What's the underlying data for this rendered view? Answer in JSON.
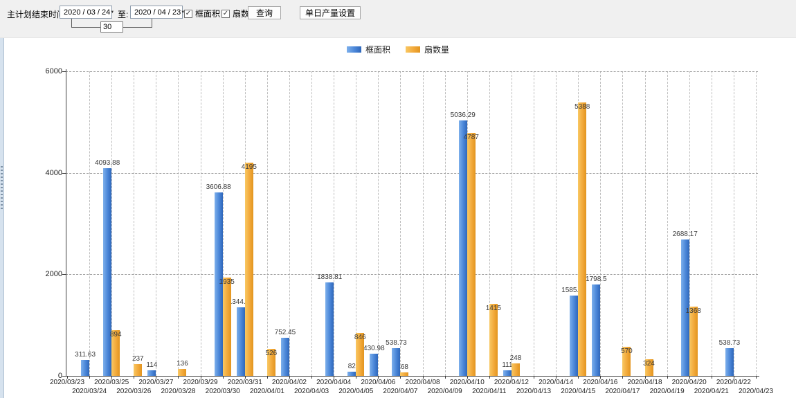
{
  "toolbar": {
    "end_time_label": "主计划结束时间:",
    "start_date": {
      "value": "2020 / 03 / 24"
    },
    "to_label": "至:",
    "end_date": {
      "value": "2020 / 04 / 23"
    },
    "interval_days": "30",
    "checkboxes": [
      {
        "label": "框面积",
        "checked": true
      },
      {
        "label": "扇数量",
        "checked": true
      }
    ],
    "query_button": "查询",
    "daily_output_button": "单日产量设置",
    "dropdown_arrow_glyph": "▼",
    "check_glyph": "✓"
  },
  "chart_data": {
    "type": "bar",
    "title": "",
    "xlabel": "",
    "ylabel": "",
    "ylim": [
      0,
      6000
    ],
    "yticks": [
      0,
      2000,
      4000,
      6000
    ],
    "grid": true,
    "legend_position": "top",
    "categories": [
      "2020/03/23",
      "2020/03/24",
      "2020/03/25",
      "2020/03/26",
      "2020/03/27",
      "2020/03/28",
      "2020/03/29",
      "2020/03/30",
      "2020/03/31",
      "2020/04/01",
      "2020/04/02",
      "2020/04/03",
      "2020/04/04",
      "2020/04/05",
      "2020/04/06",
      "2020/04/07",
      "2020/04/08",
      "2020/04/09",
      "2020/04/10",
      "2020/04/11",
      "2020/04/12",
      "2020/04/13",
      "2020/04/14",
      "2020/04/15",
      "2020/04/16",
      "2020/04/17",
      "2020/04/18",
      "2020/04/19",
      "2020/04/20",
      "2020/04/21",
      "2020/04/22",
      "2020/04/23"
    ],
    "series": [
      {
        "name": "框面积",
        "color": "#4a86d8",
        "values": [
          null,
          311.63,
          4093.88,
          null,
          114,
          null,
          null,
          3606.88,
          1344.95,
          null,
          752.45,
          null,
          1838.81,
          82,
          430.98,
          538.73,
          null,
          null,
          5036.29,
          null,
          111,
          null,
          null,
          1585.96,
          1798.5,
          null,
          null,
          null,
          2688.17,
          null,
          538.73,
          null
        ]
      },
      {
        "name": "扇数量",
        "color": "#f2a93b",
        "values": [
          null,
          null,
          894,
          237,
          null,
          136,
          null,
          1935,
          4195,
          526,
          null,
          null,
          null,
          846,
          null,
          68,
          null,
          null,
          4787,
          1415,
          248,
          null,
          null,
          5388,
          null,
          570,
          324,
          null,
          1368,
          null,
          null,
          null
        ]
      }
    ]
  }
}
